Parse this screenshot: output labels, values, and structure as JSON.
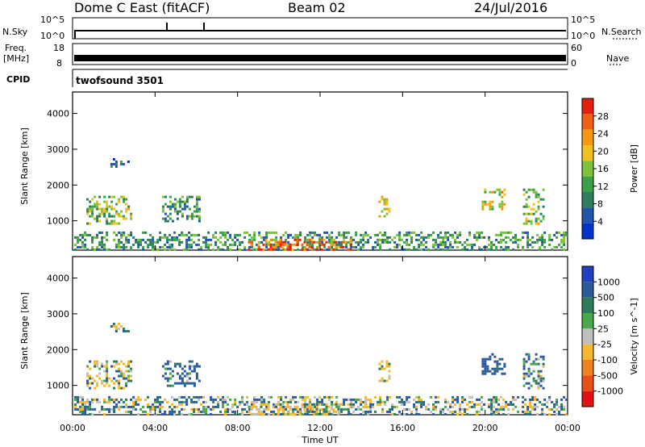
{
  "header": {
    "station": "Dome C East (fitACF)",
    "beam": "Beam 02",
    "date": "24/Jul/2016"
  },
  "strip_panels": {
    "nsky": {
      "label": "N.Sky",
      "ticks": [
        "10^5",
        "10^0"
      ]
    },
    "nsearch": {
      "label": "N.Search",
      "ticks": [
        "10^5",
        "10^0"
      ]
    },
    "freq": {
      "label_line1": "Freq.",
      "label_line2": "[MHz]",
      "ticks": [
        "18",
        "8"
      ]
    },
    "nave": {
      "label": "Nave",
      "ticks": [
        "60",
        "0"
      ]
    },
    "cpid": {
      "label": "CPID",
      "value": "twofsound 3501"
    }
  },
  "colors": {
    "power_scale": [
      "#0033cc",
      "#2255aa",
      "#2e7d5b",
      "#3ca04a",
      "#7cc23a",
      "#f0c020",
      "#f59a10",
      "#f06010",
      "#e32010"
    ],
    "velocity_scale": [
      "#2040c0",
      "#2a5a9a",
      "#2d7a5c",
      "#48a84a",
      "#bfbfbf",
      "#f5b830",
      "#f08020",
      "#e85018",
      "#e31212"
    ]
  },
  "chart_data": [
    {
      "type": "heatmap",
      "title": "",
      "xlabel": "",
      "ylabel": "Slant Range [km]",
      "xlim": [
        "00:00",
        "00:00"
      ],
      "ylim": [
        180,
        4600
      ],
      "yticks": [
        1000,
        2000,
        3000,
        4000
      ],
      "colorbar": {
        "label": "Power [dB]",
        "ticks": [
          4,
          8,
          12,
          16,
          20,
          24,
          28
        ],
        "range": [
          0,
          30
        ]
      },
      "echo_regions": [
        {
          "t_start": "00:05",
          "t_end": "23:55",
          "range_min": 180,
          "range_max": 700,
          "power_db": 10
        },
        {
          "t_start": "00:40",
          "t_end": "02:50",
          "range_min": 900,
          "range_max": 1700,
          "power_db": 14
        },
        {
          "t_start": "01:50",
          "t_end": "02:40",
          "range_min": 2500,
          "range_max": 2750,
          "power_db": 6
        },
        {
          "t_start": "04:20",
          "t_end": "06:10",
          "range_min": 1000,
          "range_max": 1700,
          "power_db": 10
        },
        {
          "t_start": "08:30",
          "t_end": "13:30",
          "range_min": 180,
          "range_max": 500,
          "power_db": 26
        },
        {
          "t_start": "14:50",
          "t_end": "15:20",
          "range_min": 1100,
          "range_max": 1700,
          "power_db": 20
        },
        {
          "t_start": "19:50",
          "t_end": "21:00",
          "range_min": 1300,
          "range_max": 1900,
          "power_db": 18
        },
        {
          "t_start": "21:50",
          "t_end": "22:50",
          "range_min": 900,
          "range_max": 1900,
          "power_db": 14
        }
      ]
    },
    {
      "type": "heatmap",
      "title": "",
      "xlabel": "Time UT",
      "ylabel": "Slant Range [km]",
      "xticks": [
        "00:00",
        "04:00",
        "08:00",
        "12:00",
        "16:00",
        "20:00",
        "00:00"
      ],
      "ylim": [
        180,
        4600
      ],
      "yticks": [
        1000,
        2000,
        3000,
        4000
      ],
      "colorbar": {
        "label": "Velocity [m s^-1]",
        "ticks": [
          1000,
          500,
          100,
          25,
          -25,
          -100,
          -500,
          -1000
        ]
      },
      "echo_regions": [
        {
          "t_start": "00:05",
          "t_end": "23:55",
          "range_min": 180,
          "range_max": 700,
          "velocity": 50
        },
        {
          "t_start": "00:40",
          "t_end": "02:50",
          "range_min": 900,
          "range_max": 1700,
          "velocity": 0
        },
        {
          "t_start": "01:50",
          "t_end": "02:40",
          "range_min": 2500,
          "range_max": 2750,
          "velocity": 0
        },
        {
          "t_start": "04:20",
          "t_end": "06:10",
          "range_min": 1000,
          "range_max": 1700,
          "velocity": 150
        },
        {
          "t_start": "08:30",
          "t_end": "13:30",
          "range_min": 180,
          "range_max": 500,
          "velocity": -150
        },
        {
          "t_start": "14:50",
          "t_end": "15:20",
          "range_min": 1100,
          "range_max": 1700,
          "velocity": -150
        },
        {
          "t_start": "19:50",
          "t_end": "21:00",
          "range_min": 1300,
          "range_max": 1900,
          "velocity": 300
        },
        {
          "t_start": "21:50",
          "t_end": "22:50",
          "range_min": 900,
          "range_max": 1900,
          "velocity": 100
        }
      ]
    }
  ]
}
